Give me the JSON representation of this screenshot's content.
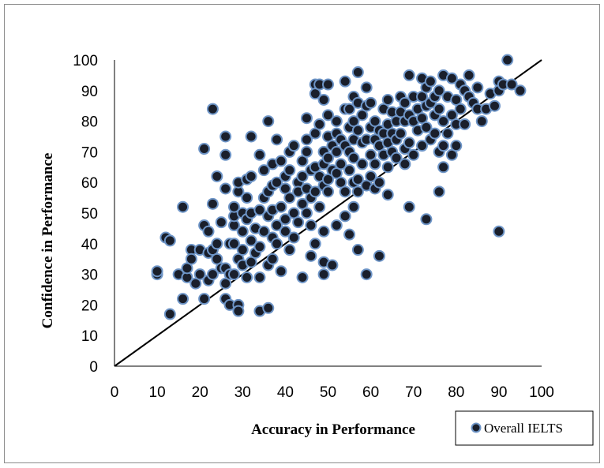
{
  "chart_data": {
    "type": "scatter",
    "title": "",
    "xlabel": "Accuracy in Performance",
    "ylabel": "Confidence in Performance",
    "xlim": [
      0,
      100
    ],
    "ylim": [
      0,
      100
    ],
    "xticks": [
      "0",
      "10",
      "20",
      "30",
      "40",
      "50",
      "60",
      "70",
      "80",
      "90",
      "100"
    ],
    "yticks": [
      "0",
      "10",
      "20",
      "30",
      "40",
      "50",
      "60",
      "70",
      "80",
      "90",
      "100"
    ],
    "grid": false,
    "legend_position": "bottom-right",
    "reference_line": {
      "from": [
        0,
        0
      ],
      "to": [
        100,
        100
      ]
    },
    "colors": {
      "marker_fill": "#1a1f2b",
      "marker_edge": "#6e95c7"
    },
    "series": [
      {
        "name": "Overall IELTS",
        "points": [
          [
            10,
            30
          ],
          [
            10,
            31
          ],
          [
            12,
            42
          ],
          [
            13,
            41
          ],
          [
            13,
            17
          ],
          [
            15,
            30
          ],
          [
            16,
            22
          ],
          [
            16,
            52
          ],
          [
            17,
            29
          ],
          [
            17,
            32
          ],
          [
            18,
            38
          ],
          [
            18,
            35
          ],
          [
            19,
            27
          ],
          [
            20,
            30
          ],
          [
            20,
            38
          ],
          [
            21,
            46
          ],
          [
            21,
            22
          ],
          [
            21,
            71
          ],
          [
            22,
            44
          ],
          [
            22,
            37
          ],
          [
            22,
            28
          ],
          [
            23,
            30
          ],
          [
            23,
            38
          ],
          [
            23,
            53
          ],
          [
            23,
            84
          ],
          [
            24,
            62
          ],
          [
            24,
            35
          ],
          [
            24,
            40
          ],
          [
            25,
            32
          ],
          [
            25,
            47
          ],
          [
            26,
            75
          ],
          [
            26,
            58
          ],
          [
            26,
            69
          ],
          [
            26,
            32
          ],
          [
            26,
            22
          ],
          [
            26,
            27
          ],
          [
            27,
            30
          ],
          [
            27,
            40
          ],
          [
            27,
            20
          ],
          [
            28,
            30
          ],
          [
            28,
            40
          ],
          [
            28,
            46
          ],
          [
            28,
            49
          ],
          [
            28,
            52
          ],
          [
            29,
            57
          ],
          [
            29,
            60
          ],
          [
            29,
            35
          ],
          [
            29,
            20
          ],
          [
            29,
            18
          ],
          [
            30,
            50
          ],
          [
            30,
            38
          ],
          [
            30,
            33
          ],
          [
            30,
            44
          ],
          [
            31,
            55
          ],
          [
            31,
            61
          ],
          [
            31,
            48
          ],
          [
            31,
            29
          ],
          [
            32,
            75
          ],
          [
            32,
            62
          ],
          [
            32,
            50
          ],
          [
            32,
            41
          ],
          [
            32,
            34
          ],
          [
            33,
            37
          ],
          [
            33,
            45
          ],
          [
            34,
            69
          ],
          [
            34,
            51
          ],
          [
            34,
            39
          ],
          [
            34,
            29
          ],
          [
            34,
            18
          ],
          [
            35,
            55
          ],
          [
            35,
            64
          ],
          [
            35,
            44
          ],
          [
            36,
            80
          ],
          [
            36,
            57
          ],
          [
            36,
            49
          ],
          [
            36,
            33
          ],
          [
            36,
            19
          ],
          [
            37,
            59
          ],
          [
            37,
            66
          ],
          [
            37,
            51
          ],
          [
            37,
            42
          ],
          [
            37,
            35
          ],
          [
            38,
            74
          ],
          [
            38,
            60
          ],
          [
            38,
            46
          ],
          [
            38,
            40
          ],
          [
            39,
            52
          ],
          [
            39,
            67
          ],
          [
            39,
            31
          ],
          [
            40,
            58
          ],
          [
            40,
            62
          ],
          [
            40,
            48
          ],
          [
            40,
            44
          ],
          [
            41,
            70
          ],
          [
            41,
            64
          ],
          [
            41,
            55
          ],
          [
            41,
            38
          ],
          [
            42,
            72
          ],
          [
            42,
            50
          ],
          [
            42,
            42
          ],
          [
            43,
            60
          ],
          [
            43,
            57
          ],
          [
            43,
            47
          ],
          [
            44,
            67
          ],
          [
            44,
            62
          ],
          [
            44,
            53
          ],
          [
            44,
            29
          ],
          [
            45,
            81
          ],
          [
            45,
            74
          ],
          [
            45,
            70
          ],
          [
            45,
            58
          ],
          [
            45,
            50
          ],
          [
            46,
            64
          ],
          [
            46,
            55
          ],
          [
            46,
            46
          ],
          [
            46,
            36
          ],
          [
            47,
            92
          ],
          [
            47,
            89
          ],
          [
            47,
            76
          ],
          [
            47,
            65
          ],
          [
            47,
            57
          ],
          [
            47,
            40
          ],
          [
            48,
            92
          ],
          [
            48,
            79
          ],
          [
            48,
            62
          ],
          [
            48,
            52
          ],
          [
            49,
            87
          ],
          [
            49,
            70
          ],
          [
            49,
            66
          ],
          [
            49,
            59
          ],
          [
            49,
            44
          ],
          [
            49,
            34
          ],
          [
            49,
            30
          ],
          [
            50,
            92
          ],
          [
            50,
            82
          ],
          [
            50,
            75
          ],
          [
            50,
            68
          ],
          [
            50,
            61
          ],
          [
            50,
            57
          ],
          [
            51,
            72
          ],
          [
            51,
            64
          ],
          [
            51,
            33
          ],
          [
            52,
            80
          ],
          [
            52,
            76
          ],
          [
            52,
            70
          ],
          [
            52,
            63
          ],
          [
            52,
            46
          ],
          [
            53,
            74
          ],
          [
            53,
            66
          ],
          [
            53,
            60
          ],
          [
            54,
            93
          ],
          [
            54,
            84
          ],
          [
            54,
            72
          ],
          [
            54,
            57
          ],
          [
            54,
            49
          ],
          [
            55,
            84
          ],
          [
            55,
            78
          ],
          [
            55,
            70
          ],
          [
            55,
            64
          ],
          [
            55,
            43
          ],
          [
            56,
            88
          ],
          [
            56,
            80
          ],
          [
            56,
            74
          ],
          [
            56,
            68
          ],
          [
            56,
            60
          ],
          [
            56,
            52
          ],
          [
            57,
            96
          ],
          [
            57,
            86
          ],
          [
            57,
            77
          ],
          [
            57,
            61
          ],
          [
            57,
            57
          ],
          [
            57,
            38
          ],
          [
            58,
            82
          ],
          [
            58,
            73
          ],
          [
            58,
            66
          ],
          [
            59,
            91
          ],
          [
            59,
            85
          ],
          [
            59,
            74
          ],
          [
            59,
            59
          ],
          [
            59,
            30
          ],
          [
            60,
            86
          ],
          [
            60,
            78
          ],
          [
            60,
            69
          ],
          [
            60,
            62
          ],
          [
            61,
            80
          ],
          [
            61,
            74
          ],
          [
            61,
            66
          ],
          [
            61,
            58
          ],
          [
            62,
            77
          ],
          [
            62,
            72
          ],
          [
            62,
            60
          ],
          [
            62,
            36
          ],
          [
            63,
            84
          ],
          [
            63,
            76
          ],
          [
            63,
            69
          ],
          [
            64,
            87
          ],
          [
            64,
            79
          ],
          [
            64,
            73
          ],
          [
            64,
            65
          ],
          [
            64,
            56
          ],
          [
            65,
            83
          ],
          [
            65,
            76
          ],
          [
            65,
            70
          ],
          [
            66,
            80
          ],
          [
            66,
            74
          ],
          [
            66,
            68
          ],
          [
            67,
            88
          ],
          [
            67,
            83
          ],
          [
            67,
            76
          ],
          [
            68,
            86
          ],
          [
            68,
            80
          ],
          [
            68,
            71
          ],
          [
            68,
            66
          ],
          [
            69,
            95
          ],
          [
            69,
            82
          ],
          [
            69,
            73
          ],
          [
            69,
            52
          ],
          [
            70,
            88
          ],
          [
            70,
            80
          ],
          [
            70,
            69
          ],
          [
            71,
            84
          ],
          [
            71,
            77
          ],
          [
            72,
            94
          ],
          [
            72,
            88
          ],
          [
            72,
            81
          ],
          [
            72,
            72
          ],
          [
            73,
            91
          ],
          [
            73,
            85
          ],
          [
            73,
            78
          ],
          [
            73,
            48
          ],
          [
            74,
            93
          ],
          [
            74,
            86
          ],
          [
            74,
            74
          ],
          [
            75,
            88
          ],
          [
            75,
            82
          ],
          [
            75,
            76
          ],
          [
            76,
            90
          ],
          [
            76,
            84
          ],
          [
            76,
            70
          ],
          [
            76,
            57
          ],
          [
            77,
            95
          ],
          [
            77,
            80
          ],
          [
            77,
            72
          ],
          [
            77,
            65
          ],
          [
            78,
            88
          ],
          [
            78,
            76
          ],
          [
            79,
            94
          ],
          [
            79,
            82
          ],
          [
            79,
            69
          ],
          [
            80,
            87
          ],
          [
            80,
            79
          ],
          [
            80,
            72
          ],
          [
            81,
            92
          ],
          [
            81,
            84
          ],
          [
            82,
            90
          ],
          [
            82,
            79
          ],
          [
            83,
            95
          ],
          [
            83,
            88
          ],
          [
            84,
            86
          ],
          [
            85,
            91
          ],
          [
            85,
            84
          ],
          [
            86,
            80
          ],
          [
            87,
            84
          ],
          [
            88,
            89
          ],
          [
            89,
            85
          ],
          [
            90,
            93
          ],
          [
            90,
            90
          ],
          [
            90,
            44
          ],
          [
            91,
            92
          ],
          [
            92,
            100
          ],
          [
            93,
            92
          ],
          [
            95,
            90
          ]
        ]
      }
    ]
  }
}
